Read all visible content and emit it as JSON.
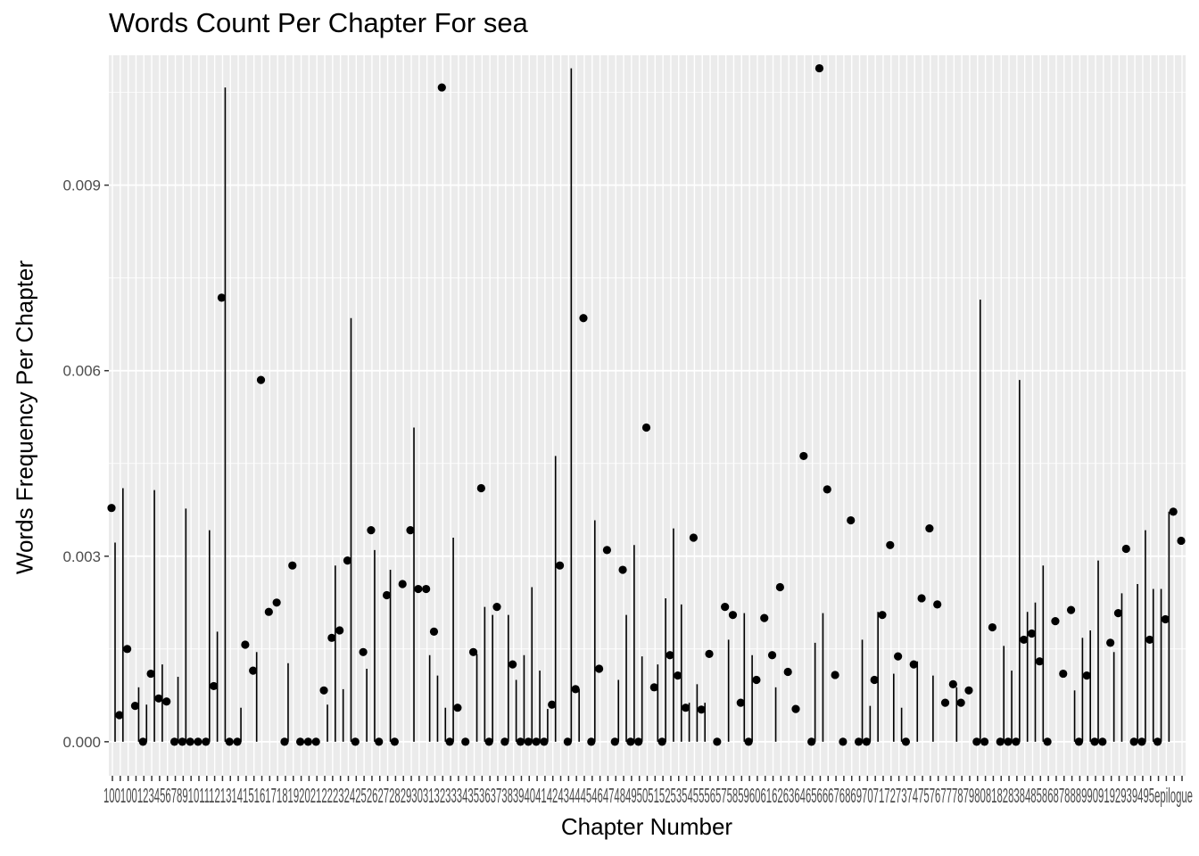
{
  "chart_data": {
    "type": "line",
    "title": "Words Count Per Chapter For sea",
    "xlabel": "Chapter Number",
    "ylabel": "Words Frequency Per Chapter",
    "ylim": [
      -0.00055,
      0.0111
    ],
    "y_ticks": [
      0,
      0.003,
      0.006,
      0.009
    ],
    "y_tick_labels": [
      "0.000",
      "0.003",
      "0.006",
      "0.009"
    ],
    "x_tick_labels_visible": "1001001234567891011121314151617181920212223242526272829303132333435363738394041424344454647484950515253545556575859606162636465666768697071727374757677787980818283848586878889909192939495epilogue",
    "grid": true,
    "panel_background": "#ebebeb",
    "grid_color": "#ffffff",
    "mark_color": "#000000",
    "series": [
      {
        "values": [
          0.00378,
          0.00043,
          0.0015,
          0.00058,
          0.0,
          0.0011,
          0.0007,
          0.00065,
          0.0,
          0.0,
          0.0,
          0.0,
          0.0,
          0.0009,
          0.00718,
          0.0,
          0.0,
          0.00157,
          0.00115,
          0.00585,
          0.0021,
          0.00225,
          0.0,
          0.00285,
          0.0,
          0.0,
          0.0,
          0.00083,
          0.00168,
          0.0018,
          0.00293,
          0.0,
          0.00145,
          0.00342,
          0.0,
          0.00237,
          0.0,
          0.00255,
          0.00342,
          0.00247,
          0.00247,
          0.00178,
          0.01058,
          0.0,
          0.00055,
          0.0,
          0.00145,
          0.0041,
          0.0,
          0.00218,
          0.0,
          0.00125,
          0.0,
          0.0,
          0.0,
          0.0,
          0.0006,
          0.00285,
          0.0,
          0.00085,
          0.00685,
          0.0,
          0.00118,
          0.0031,
          0.0,
          0.00278,
          0.0,
          0.0,
          0.00508,
          0.00088,
          0.0,
          0.0014,
          0.00107,
          0.00055,
          0.0033,
          0.00052,
          0.00142,
          0.0,
          0.00218,
          0.00205,
          0.00063,
          0.0,
          0.001,
          0.002,
          0.0014,
          0.0025,
          0.00113,
          0.00053,
          0.00462,
          0.0,
          0.01089,
          0.00408,
          0.00108,
          0.0,
          0.00358,
          0.0,
          0.0,
          0.001,
          0.00205,
          0.00318,
          0.00138,
          0.0,
          0.00125,
          0.00232,
          0.00345,
          0.00222,
          0.00063,
          0.00093,
          0.00063,
          0.00083,
          0.0,
          0.0,
          0.00185,
          0.0,
          0.0,
          0.0,
          0.00165,
          0.00175,
          0.0013,
          0.0,
          0.00195,
          0.0011,
          0.00213,
          0.0,
          0.00107,
          0.0,
          0.0,
          0.0016,
          0.00208,
          0.00312,
          0.0,
          0.0,
          0.00165,
          0.0,
          0.00198,
          0.00372,
          0.00325
        ]
      },
      {
        "values": [
          0.00322,
          0.0041,
          0.0,
          0.00088,
          0.0006,
          0.00407,
          0.00125,
          0.0,
          0.00105,
          0.00377,
          0.0,
          0.0,
          0.00342,
          0.00178,
          0.01058,
          0.0,
          0.00055,
          0.0,
          0.00145,
          0.0,
          0.0,
          0.0,
          0.00127,
          0.0,
          0.0,
          0.0,
          0.0,
          0.0006,
          0.00285,
          0.00085,
          0.00685,
          0.0,
          0.00118,
          0.0031,
          0.0,
          0.00278,
          0.0,
          0.0,
          0.00508,
          0.0,
          0.0014,
          0.00107,
          0.00055,
          0.0033,
          0.0,
          0.0,
          0.00142,
          0.00218,
          0.00205,
          0.0,
          0.00205,
          0.001,
          0.0014,
          0.0025,
          0.00115,
          0.00053,
          0.00462,
          0.0,
          0.01089,
          0.00085,
          0.0,
          0.00358,
          0.0,
          0.0,
          0.001,
          0.00205,
          0.00318,
          0.00138,
          0.0,
          0.00125,
          0.00232,
          0.00345,
          0.00222,
          0.00063,
          0.00093,
          0.00063,
          0.0,
          0.0,
          0.00165,
          0.0,
          0.00208,
          0.0014,
          0.0,
          0.0,
          0.00088,
          0.0,
          0.0,
          0.0,
          0.0,
          0.0016,
          0.00208,
          0.0,
          0.0,
          0.0,
          0.0,
          0.00165,
          0.00058,
          0.0021,
          0.0,
          0.0011,
          0.00055,
          0.0,
          0.0013,
          0.0,
          0.00107,
          0.0,
          0.0,
          0.00088,
          0.0,
          0.0,
          0.00715,
          0.0,
          0.0,
          0.00155,
          0.00115,
          0.00585,
          0.0021,
          0.00225,
          0.00285,
          0.0,
          0.0,
          0.0,
          0.00083,
          0.00168,
          0.0018,
          0.00293,
          0.0,
          0.00145,
          0.0024,
          0.0,
          0.00255,
          0.00342,
          0.00247,
          0.00247,
          0.00372
        ]
      }
    ]
  }
}
